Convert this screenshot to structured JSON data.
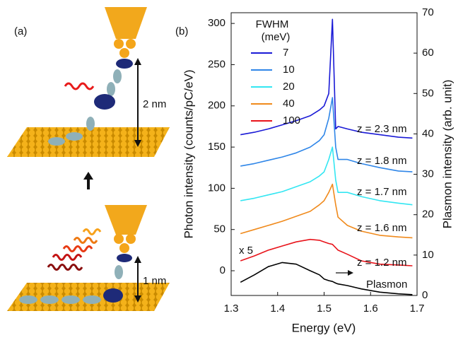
{
  "panel_a": {
    "label": "(a)",
    "top_gap": "2 nm",
    "bottom_gap": "1 nm"
  },
  "chart_data": {
    "type": "line",
    "panel_label": "(b)",
    "x_label": "Energy (eV)",
    "y_label": "Photon intensity (counts/pC/eV)",
    "y2_label": "Plasmon intensity (arb. unit)",
    "legend_title": "FWHM",
    "legend_subtitle": "(meV)",
    "x": [
      1.32,
      1.35,
      1.38,
      1.41,
      1.44,
      1.47,
      1.49,
      1.5,
      1.51,
      1.518,
      1.525,
      1.53,
      1.55,
      1.58,
      1.62,
      1.66,
      1.69
    ],
    "series": [
      {
        "name": "7",
        "color": "#1a1ad6",
        "values": [
          165,
          168,
          172,
          177,
          182,
          188,
          195,
          200,
          215,
          305,
          172,
          175,
          172,
          168,
          165,
          162,
          161
        ]
      },
      {
        "name": "10",
        "color": "#2f86e8",
        "values": [
          127,
          130,
          134,
          138,
          143,
          150,
          158,
          165,
          185,
          210,
          150,
          135,
          135,
          130,
          125,
          121,
          120
        ]
      },
      {
        "name": "20",
        "color": "#33e6f2",
        "values": [
          85,
          88,
          92,
          96,
          102,
          108,
          115,
          120,
          135,
          150,
          110,
          95,
          95,
          90,
          85,
          82,
          80
        ]
      },
      {
        "name": "40",
        "color": "#f08a1c",
        "values": [
          45,
          50,
          55,
          60,
          66,
          72,
          80,
          85,
          95,
          105,
          80,
          65,
          55,
          48,
          43,
          41,
          40
        ]
      },
      {
        "name": "100",
        "color": "#e8141b",
        "values": [
          12,
          18,
          25,
          30,
          35,
          38,
          37,
          35,
          33,
          32,
          28,
          25,
          20,
          12,
          8,
          7,
          6
        ]
      },
      {
        "name": "Plasmon",
        "color": "#000000",
        "values": [
          -14,
          -5,
          5,
          10,
          8,
          0,
          -5,
          -10,
          -12,
          -13,
          -15,
          -16,
          -18,
          -22,
          -26,
          -28,
          -29
        ]
      }
    ],
    "annotations": [
      "z = 2.3 nm",
      "z = 1.8 nm",
      "z = 1.7 nm",
      "z = 1.6 nm",
      "z = 1.2 nm",
      "x 5"
    ],
    "xlim": [
      1.3,
      1.7
    ],
    "xticks": [
      1.3,
      1.4,
      1.5,
      1.6,
      1.7
    ],
    "ylim": [
      -30,
      313
    ],
    "yticks": [
      0,
      50,
      100,
      150,
      200,
      250,
      300
    ],
    "y2lim": [
      0,
      70
    ],
    "y2ticks": [
      0,
      10,
      20,
      30,
      40,
      50,
      60,
      70
    ],
    "grid": false
  }
}
